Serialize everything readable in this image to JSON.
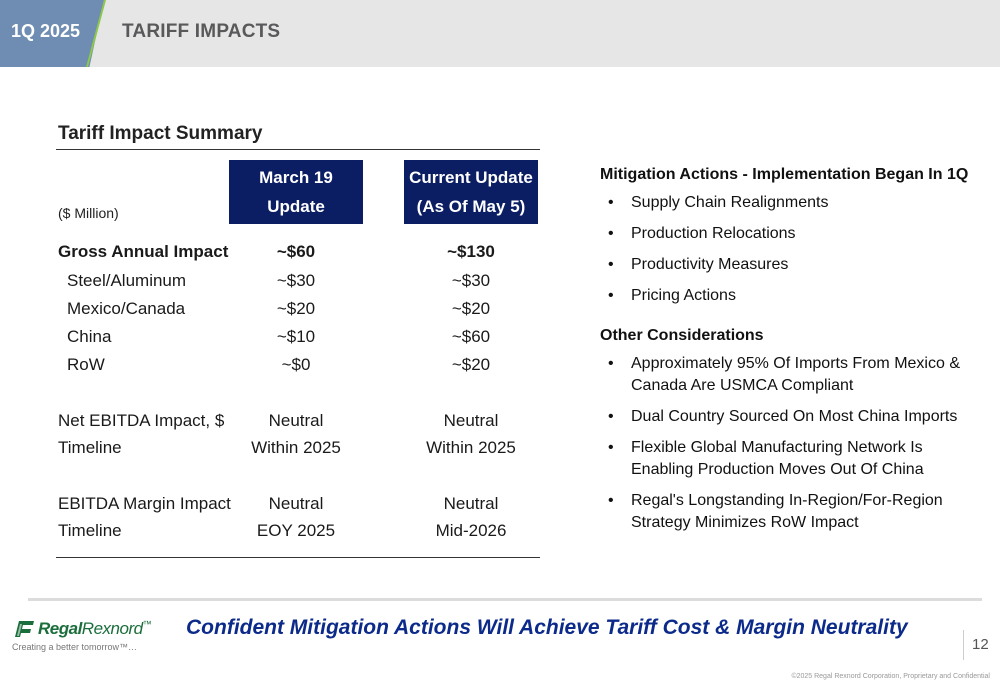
{
  "header": {
    "quarter": "1Q 2025",
    "title": "TARIFF IMPACTS"
  },
  "table": {
    "title": "Tariff Impact Summary",
    "unit": "($ Million)",
    "col1_header": [
      "March 19 Update"
    ],
    "col2_header": [
      "Current Update",
      "(As Of May 5)"
    ],
    "rows": [
      {
        "label": "Gross Annual Impact",
        "v1": "~$60",
        "v2": "~$130",
        "bold": true,
        "sub": false
      },
      {
        "label": "Steel/Aluminum",
        "v1": "~$30",
        "v2": "~$30",
        "bold": false,
        "sub": true
      },
      {
        "label": "Mexico/Canada",
        "v1": "~$20",
        "v2": "~$20",
        "bold": false,
        "sub": true
      },
      {
        "label": "China",
        "v1": "~$10",
        "v2": "~$60",
        "bold": false,
        "sub": true
      },
      {
        "label": "RoW",
        "v1": "~$0",
        "v2": "~$20",
        "bold": false,
        "sub": true
      },
      {
        "label": "Net EBITDA Impact, $",
        "v1": "Neutral",
        "v2": "Neutral",
        "bold": false,
        "sub": false
      },
      {
        "label": "Timeline",
        "v1": "Within 2025",
        "v2": "Within 2025",
        "bold": false,
        "sub": false
      },
      {
        "label": "EBITDA Margin Impact",
        "v1": "Neutral",
        "v2": "Neutral",
        "bold": false,
        "sub": false
      },
      {
        "label": "Timeline",
        "v1": "EOY 2025",
        "v2": "Mid-2026",
        "bold": false,
        "sub": false
      }
    ]
  },
  "mitigation": {
    "heading": "Mitigation Actions - Implementation Began In 1Q",
    "items": [
      "Supply Chain Realignments",
      "Production Relocations",
      "Productivity Measures",
      "Pricing Actions"
    ]
  },
  "considerations": {
    "heading": "Other Considerations",
    "items": [
      [
        "Approximately 95% Of Imports From Mexico &",
        "Canada Are USMCA Compliant"
      ],
      [
        "Dual Country Sourced On Most China Imports"
      ],
      [
        "Flexible Global Manufacturing Network Is",
        "Enabling Production Moves Out Of China"
      ],
      [
        "Regal's Longstanding In-Region/For-Region",
        "Strategy Minimizes RoW Impact"
      ]
    ]
  },
  "footer": {
    "logo_part1": "Regal",
    "logo_part2": "Rexnord",
    "logo_tm": "™",
    "tagline": "Creating a better tomorrow™…",
    "message": "Confident Mitigation Actions Will Achieve Tariff Cost & Margin Neutrality",
    "page_number": "12",
    "copyright": "©2025 Regal Rexnord Corporation, Proprietary and Confidential"
  },
  "colors": {
    "header_bg": "#e6e6e6",
    "quarter_block": "#6f8db2",
    "accent_green": "#8cc84b",
    "table_header": "#0b1e64",
    "footer_message": "#0b2a8a",
    "logo_green": "#1b6e3c"
  },
  "icons": [
    "regal-rexnord-logo-icon"
  ]
}
